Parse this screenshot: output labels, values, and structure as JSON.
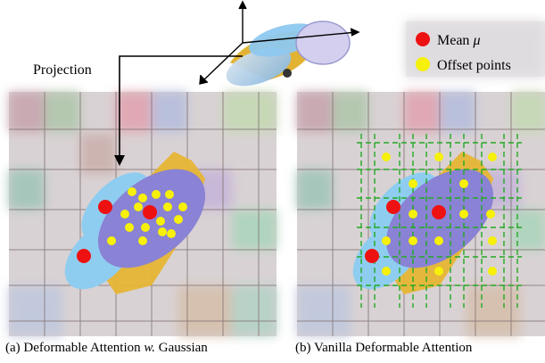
{
  "projection_label": "Projection",
  "legend": {
    "mean_prefix": "Mean ",
    "mean_symbol": "μ",
    "offset_label": "Offset points",
    "mean_color": "#ee1111",
    "offset_color": "#f6f00a"
  },
  "captions": {
    "a_prefix": "(a) Deformable Attention ",
    "a_italic": "w.",
    "a_suffix": " Gaussian",
    "b": "(b) Vanilla Deformable Attention"
  },
  "colors": {
    "grid_line": "#7a6a6a",
    "dashed_grid": "#22aa22",
    "gaussian_blue": "#88c8ee",
    "gaussian_purple": "#8a80d6",
    "car_yellow": "#e8b830"
  }
}
